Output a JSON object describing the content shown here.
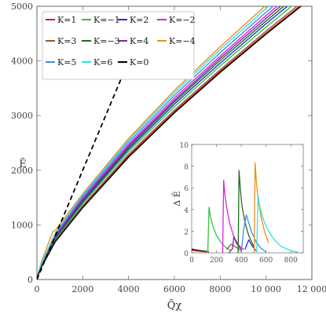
{
  "chart_data": [
    {
      "type": "line",
      "xlabel": "Q̃χ",
      "ylabel": "Ẽ",
      "xlim": [
        0,
        12000
      ],
      "ylim": [
        0,
        5000
      ],
      "xticks": [
        0,
        2000,
        4000,
        6000,
        8000,
        10000,
        12000
      ],
      "xtick_labels": [
        "0",
        "2000",
        "4000",
        "6000",
        "8000",
        "10 000",
        "12 000"
      ],
      "yticks": [
        0,
        1000,
        2000,
        3000,
        4000,
        5000
      ],
      "ytick_labels": [
        "0",
        "1000",
        "2000",
        "3000",
        "4000",
        "5000"
      ],
      "legend_position": "top-left",
      "series": [
        {
          "name": "K=1",
          "color": "#d62020",
          "x": [
            0,
            30,
            200,
            800,
            2000,
            4000,
            6000,
            8000,
            10000,
            12000
          ],
          "y": [
            0,
            60,
            240,
            700,
            1330,
            2260,
            3070,
            3810,
            4510,
            5180
          ]
        },
        {
          "name": "K=−1",
          "color": "#3cbf3c",
          "x": [
            0,
            30,
            200,
            800,
            2000,
            4000,
            6000,
            8000,
            10000,
            12000
          ],
          "y": [
            0,
            64,
            255,
            740,
            1390,
            2340,
            3160,
            3910,
            4620,
            5300
          ]
        },
        {
          "name": "K=2",
          "color": "#1f2fd6",
          "x": [
            0,
            30,
            200,
            800,
            2000,
            4000,
            6000,
            8000,
            10000,
            12000
          ],
          "y": [
            0,
            66,
            262,
            760,
            1420,
            2380,
            3210,
            3960,
            4680,
            5370
          ]
        },
        {
          "name": "K=−2",
          "color": "#e020e0",
          "x": [
            0,
            30,
            200,
            800,
            2000,
            4000,
            6000,
            8000,
            10000,
            12000
          ],
          "y": [
            0,
            70,
            280,
            810,
            1490,
            2470,
            3320,
            4090,
            4830,
            5530
          ]
        },
        {
          "name": "K=3",
          "color": "#8b5a3c",
          "x": [
            0,
            30,
            200,
            800,
            2000,
            4000,
            6000,
            8000,
            10000,
            12000
          ],
          "y": [
            0,
            61,
            246,
            715,
            1350,
            2290,
            3100,
            3840,
            4545,
            5220
          ]
        },
        {
          "name": "K=−3",
          "color": "#1c6e1c",
          "x": [
            0,
            30,
            200,
            800,
            2000,
            4000,
            6000,
            8000,
            10000,
            12000
          ],
          "y": [
            0,
            67,
            268,
            775,
            1440,
            2410,
            3250,
            4010,
            4730,
            5430
          ]
        },
        {
          "name": "K=4",
          "color": "#7a2a9c",
          "x": [
            0,
            30,
            200,
            800,
            2000,
            4000,
            6000,
            8000,
            10000,
            12000
          ],
          "y": [
            0,
            68,
            272,
            790,
            1460,
            2440,
            3280,
            4050,
            4780,
            5480
          ]
        },
        {
          "name": "K=−4",
          "color": "#f08c1a",
          "x": [
            0,
            30,
            200,
            700,
            800,
            2000,
            4000,
            6000,
            8000,
            10000,
            12000
          ],
          "y": [
            0,
            80,
            330,
            880,
            900,
            1570,
            2580,
            3460,
            4260,
            5020,
            5750
          ]
        },
        {
          "name": "K=5",
          "color": "#3a8ee6",
          "x": [
            0,
            30,
            200,
            800,
            2000,
            4000,
            6000,
            8000,
            10000,
            12000
          ],
          "y": [
            0,
            72,
            290,
            830,
            1520,
            2510,
            3370,
            4150,
            4890,
            5600
          ]
        },
        {
          "name": "K=6",
          "color": "#33e0e0",
          "x": [
            0,
            30,
            200,
            800,
            2000,
            4000,
            6000,
            8000,
            10000,
            12000
          ],
          "y": [
            0,
            74,
            298,
            850,
            1550,
            2550,
            3420,
            4210,
            4960,
            5680
          ]
        },
        {
          "name": "K=0",
          "color": "#000000",
          "x": [
            0,
            30,
            200,
            800,
            2000,
            4000,
            6000,
            8000,
            10000,
            12000
          ],
          "y": [
            0,
            58,
            232,
            690,
            1315,
            2240,
            3050,
            3790,
            4490,
            5160
          ]
        },
        {
          "name": "",
          "color": "#000000",
          "dashed": true,
          "x": [
            0,
            4000
          ],
          "y": [
            0,
            4000
          ]
        }
      ]
    },
    {
      "type": "line",
      "xlabel": "",
      "ylabel": "Δ Ẽ",
      "xlim": [
        0,
        900
      ],
      "ylim": [
        0,
        10
      ],
      "xticks": [
        0,
        200,
        400,
        600,
        800
      ],
      "xtick_labels": [
        "0",
        "200",
        "400",
        "600",
        "800"
      ],
      "yticks": [
        0,
        2,
        4,
        6,
        8,
        10
      ],
      "ytick_labels": [
        "0",
        "2",
        "4",
        "6",
        "8",
        "10"
      ],
      "series": [
        {
          "name": "K=0",
          "color": "#000000",
          "x": [
            0,
            20,
            60,
            100,
            140
          ],
          "y": [
            0.35,
            0.3,
            0.22,
            0.15,
            0.1
          ]
        },
        {
          "name": "K=1",
          "color": "#d62020",
          "x": [
            0,
            20,
            60,
            100,
            140
          ],
          "y": [
            0.25,
            0.2,
            0.15,
            0.1,
            0.08
          ]
        },
        {
          "name": "K=−1",
          "color": "#3cbf3c",
          "x": [
            130,
            140,
            150,
            170,
            200,
            240,
            280,
            320
          ],
          "y": [
            0,
            4.2,
            3.4,
            2.5,
            1.6,
            0.9,
            0.45,
            0.2
          ]
        },
        {
          "name": "K=−2",
          "color": "#e020e0",
          "x": [
            250,
            258,
            268,
            285,
            310,
            340,
            380,
            420
          ],
          "y": [
            0,
            6.7,
            5.4,
            4.0,
            2.6,
            1.5,
            0.7,
            0.3
          ]
        },
        {
          "name": "K=3",
          "color": "#8b5a3c",
          "x": [
            280,
            320,
            360,
            400
          ],
          "y": [
            0.3,
            0.8,
            0.5,
            0.2
          ]
        },
        {
          "name": "K=4",
          "color": "#7a2a9c",
          "x": [
            300,
            330,
            340,
            360,
            400
          ],
          "y": [
            0,
            0.4,
            1.5,
            0.9,
            0.3
          ]
        },
        {
          "name": "K=−3",
          "color": "#1c6e1c",
          "x": [
            375,
            382,
            392,
            405,
            430,
            460,
            500
          ],
          "y": [
            0,
            7.6,
            6.0,
            4.4,
            2.8,
            1.6,
            0.6
          ]
        },
        {
          "name": "K=5",
          "color": "#3a8ee6",
          "x": [
            400,
            420,
            440,
            460,
            480,
            520,
            560,
            600
          ],
          "y": [
            0,
            2.2,
            3.5,
            2.8,
            2.0,
            1.0,
            0.4,
            0.1
          ]
        },
        {
          "name": "K=2",
          "color": "#1f2fd6",
          "x": [
            430,
            460,
            490,
            520
          ],
          "y": [
            0.3,
            1.2,
            0.6,
            0.2
          ]
        },
        {
          "name": "K=−4",
          "color": "#f08c1a",
          "x": [
            505,
            512,
            522,
            535,
            560,
            590,
            620
          ],
          "y": [
            0,
            8.3,
            6.6,
            5.0,
            3.3,
            1.9,
            0.9
          ]
        },
        {
          "name": "K=6",
          "color": "#33e0e0",
          "x": [
            525,
            535,
            550,
            575,
            610,
            660,
            720,
            800,
            860
          ],
          "y": [
            0,
            5.3,
            4.2,
            3.2,
            2.2,
            1.3,
            0.6,
            0.2,
            0.05
          ]
        }
      ]
    }
  ]
}
